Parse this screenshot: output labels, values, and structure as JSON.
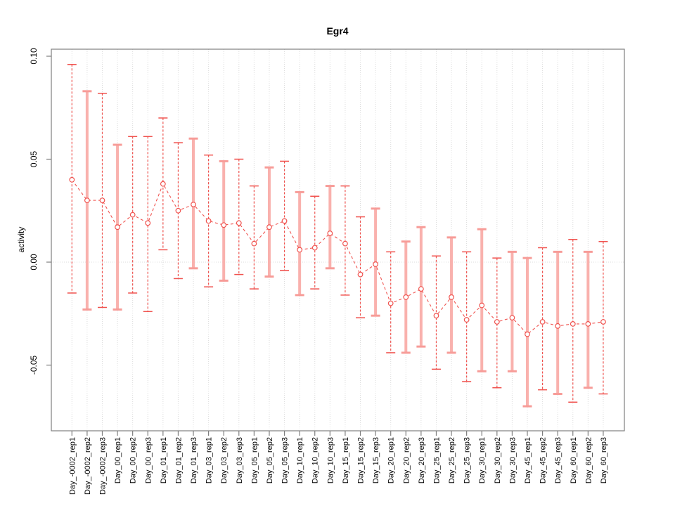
{
  "chart_data": {
    "type": "line",
    "title": "Egr4",
    "xlabel": "",
    "ylabel": "activity",
    "legend_position": "none",
    "grid": "dotted vertical line per category; dotted horizontal line at y=0",
    "ylim": [
      -0.082,
      0.103
    ],
    "yticks": [
      {
        "value": 0.1,
        "label": "0.10"
      },
      {
        "value": 0.05,
        "label": "0.05"
      },
      {
        "value": 0.0,
        "label": "0.00"
      },
      {
        "value": -0.05,
        "label": "-0.05"
      }
    ],
    "categories": [
      "Day_-0002_rep1",
      "Day_-0002_rep2",
      "Day_-0002_rep3",
      "Day_00_rep1",
      "Day_00_rep2",
      "Day_00_rep3",
      "Day_01_rep1",
      "Day_01_rep2",
      "Day_01_rep3",
      "Day_03_rep1",
      "Day_03_rep2",
      "Day_03_rep3",
      "Day_05_rep1",
      "Day_05_rep2",
      "Day_05_rep3",
      "Day_10_rep1",
      "Day_10_rep2",
      "Day_10_rep3",
      "Day_15_rep1",
      "Day_15_rep2",
      "Day_15_rep3",
      "Day_20_rep1",
      "Day_20_rep2",
      "Day_20_rep3",
      "Day_25_rep1",
      "Day_25_rep2",
      "Day_25_rep3",
      "Day_30_rep1",
      "Day_30_rep2",
      "Day_30_rep3",
      "Day_45_rep1",
      "Day_45_rep2",
      "Day_45_rep3",
      "Day_60_rep1",
      "Day_60_rep2",
      "Day_60_rep3"
    ],
    "series": [
      {
        "name": "activity",
        "marker": "open-circle",
        "line_style": "dashed",
        "values": [
          0.04,
          0.03,
          0.03,
          0.017,
          0.023,
          0.019,
          0.038,
          0.025,
          0.028,
          0.02,
          0.018,
          0.019,
          0.009,
          0.017,
          0.02,
          0.006,
          0.007,
          0.014,
          0.009,
          -0.006,
          -0.001,
          -0.02,
          -0.017,
          -0.013,
          -0.026,
          -0.017,
          -0.028,
          -0.021,
          -0.029,
          -0.027,
          -0.035,
          -0.029,
          -0.031,
          -0.03,
          -0.03,
          -0.029
        ],
        "err_high": [
          0.096,
          0.083,
          0.082,
          0.057,
          0.061,
          0.061,
          0.07,
          0.058,
          0.06,
          0.052,
          0.049,
          0.05,
          0.037,
          0.046,
          0.049,
          0.034,
          0.032,
          0.037,
          0.037,
          0.022,
          0.026,
          0.005,
          0.01,
          0.017,
          0.003,
          0.012,
          0.005,
          0.016,
          0.002,
          0.005,
          0.002,
          0.007,
          0.005,
          0.011,
          0.005,
          0.01
        ],
        "err_low": [
          -0.015,
          -0.023,
          -0.022,
          -0.023,
          -0.015,
          -0.024,
          0.006,
          -0.008,
          -0.003,
          -0.012,
          -0.009,
          -0.006,
          -0.013,
          -0.007,
          -0.004,
          -0.016,
          -0.013,
          -0.003,
          -0.016,
          -0.027,
          -0.026,
          -0.044,
          -0.044,
          -0.041,
          -0.052,
          -0.044,
          -0.058,
          -0.053,
          -0.061,
          -0.053,
          -0.07,
          -0.062,
          -0.064,
          -0.068,
          -0.061,
          -0.064
        ],
        "bar_styles": [
          "dashed",
          "thick",
          "dashed",
          "thick",
          "dashed",
          "dashed",
          "dashed",
          "dashed",
          "thick",
          "dashed",
          "thick",
          "dashed",
          "dashed",
          "thick",
          "dashed",
          "thick",
          "dashed",
          "thick",
          "dashed",
          "dashed",
          "thick",
          "dashed",
          "thick",
          "thick",
          "dashed",
          "thick",
          "dashed",
          "thick",
          "dashed",
          "thick",
          "thick",
          "dashed",
          "thick",
          "dashed",
          "thick",
          "dashed"
        ]
      }
    ],
    "colors": {
      "point": "#f0534f",
      "error_thick": "#f9b1ad",
      "error_thick_cap": "#f79c98",
      "grid": "#dcdcdc",
      "zero_line": "#dedede",
      "axis": "#7f7f7f",
      "text": "#000000",
      "background": "#ffffff"
    }
  }
}
